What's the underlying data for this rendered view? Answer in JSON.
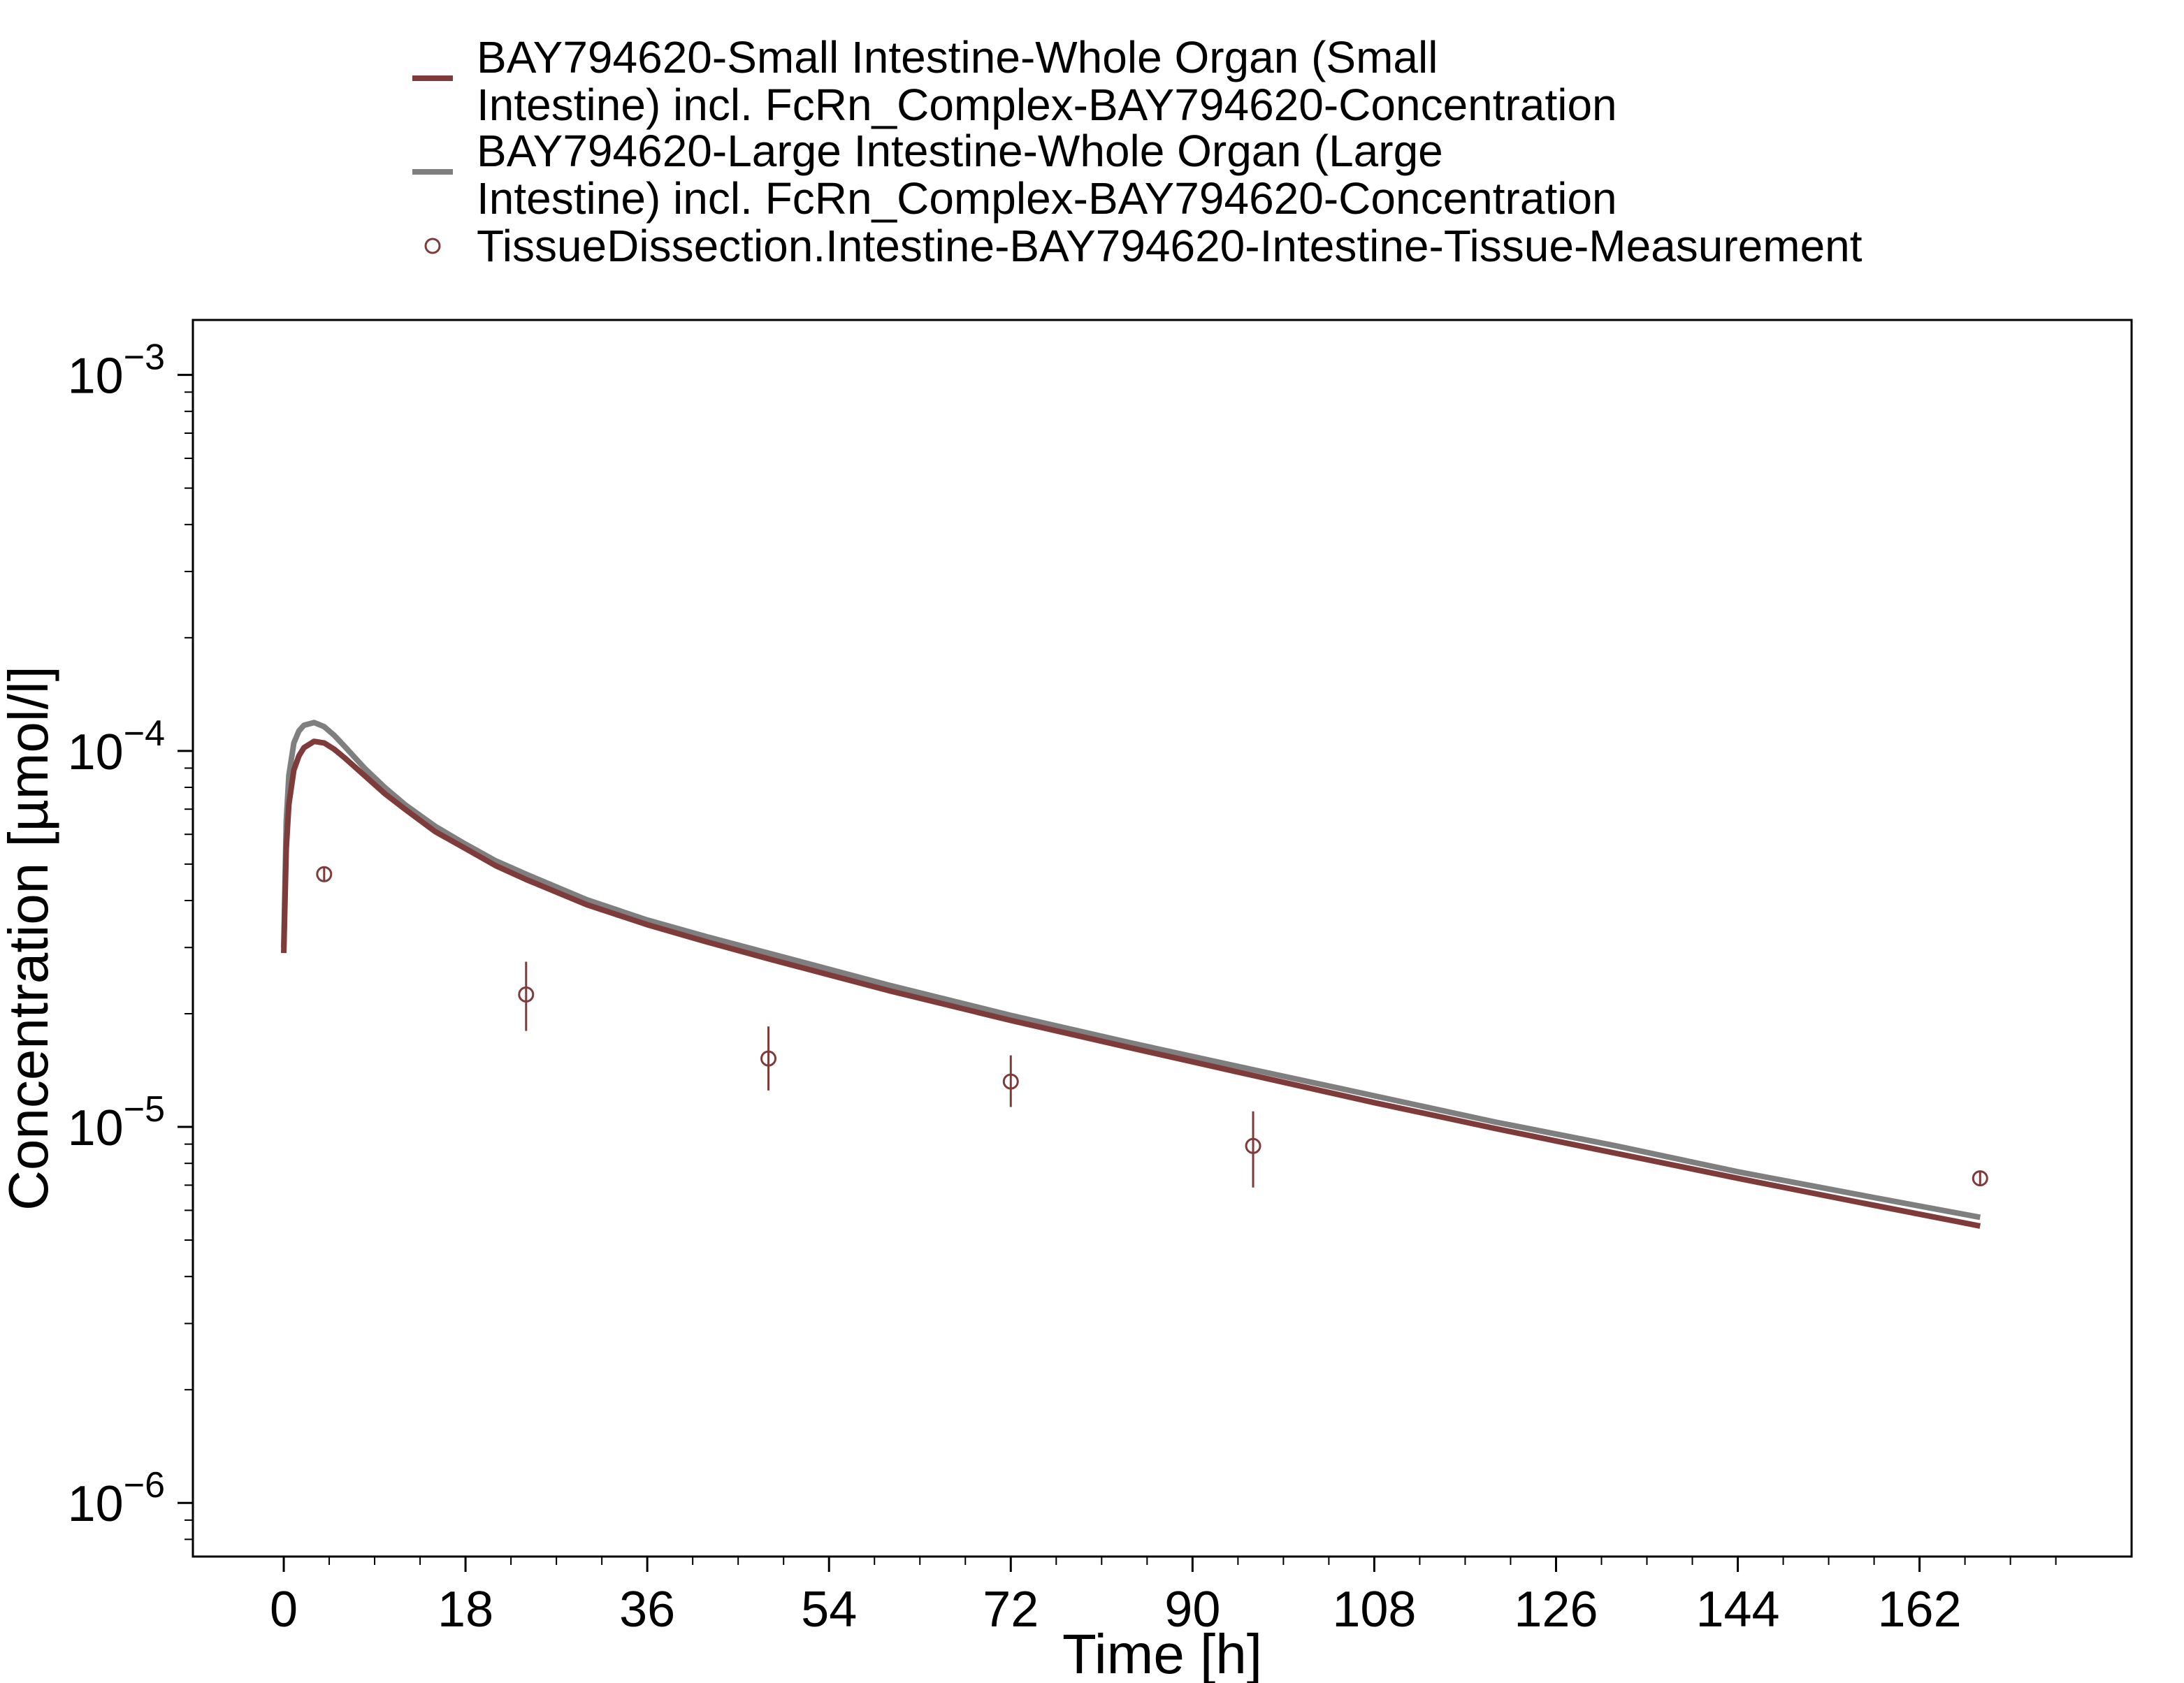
{
  "chart_data": {
    "type": "line",
    "xlabel": "Time [h]",
    "ylabel": "Concentration [µmol/l]",
    "xlim": [
      -9,
      183
    ],
    "ylim": [
      7.2e-07,
      0.0014
    ],
    "yscale": "log",
    "grid": false,
    "legend_position": "top",
    "x_ticks": [
      0,
      18,
      36,
      54,
      72,
      90,
      108,
      126,
      144,
      162
    ],
    "x_tick_labels": [
      "0",
      "18",
      "36",
      "54",
      "72",
      "90",
      "108",
      "126",
      "144",
      "162"
    ],
    "y_ticks": [
      {
        "value": 0.001,
        "base": "10",
        "exp": "−3"
      },
      {
        "value": 0.0001,
        "base": "10",
        "exp": "−4"
      },
      {
        "value": 1e-05,
        "base": "10",
        "exp": "−5"
      },
      {
        "value": 1e-06,
        "base": "10",
        "exp": "−6"
      }
    ],
    "series": [
      {
        "name": "BAY794620-Small Intestine-Whole Organ (Small Intestine) incl. FcRn_Complex-BAY794620-Concentration",
        "legend_lines": [
          "BAY794620-Small Intestine-Whole Organ (Small",
          "Intestine) incl. FcRn_Complex-BAY794620-Concentration"
        ],
        "kind": "line",
        "color": "#7f3a3a",
        "x": [
          0,
          0.25,
          0.5,
          1,
          1.5,
          2,
          3,
          4,
          5,
          6,
          8,
          10,
          12,
          15,
          18,
          21,
          24,
          30,
          36,
          42,
          48,
          60,
          72,
          84,
          96,
          108,
          120,
          132,
          144,
          156,
          168
        ],
        "y": [
          2.9e-05,
          5.5e-05,
          7.2e-05,
          8.9e-05,
          9.7e-05,
          0.000102,
          0.000106,
          0.000105,
          0.000101,
          9.6e-05,
          8.6e-05,
          7.7e-05,
          7e-05,
          6.1e-05,
          5.5e-05,
          4.95e-05,
          4.55e-05,
          3.9e-05,
          3.45e-05,
          3.1e-05,
          2.8e-05,
          2.3e-05,
          1.92e-05,
          1.62e-05,
          1.37e-05,
          1.16e-05,
          9.9e-06,
          8.5e-06,
          7.3e-06,
          6.3e-06,
          5.45e-06
        ]
      },
      {
        "name": "BAY794620-Large Intestine-Whole Organ (Large Intestine) incl. FcRn_Complex-BAY794620-Concentration",
        "legend_lines": [
          "BAY794620-Large Intestine-Whole Organ (Large",
          "Intestine) incl. FcRn_Complex-BAY794620-Concentration"
        ],
        "kind": "line",
        "color": "#7f7f7f",
        "x": [
          0,
          0.25,
          0.5,
          1,
          1.5,
          2,
          3,
          4,
          5,
          6,
          8,
          10,
          12,
          15,
          18,
          21,
          24,
          30,
          36,
          42,
          48,
          60,
          72,
          84,
          96,
          108,
          120,
          132,
          144,
          156,
          168
        ],
        "y": [
          3e-05,
          6.5e-05,
          8.6e-05,
          0.000105,
          0.000113,
          0.000117,
          0.000119,
          0.000116,
          0.00011,
          0.000103,
          9e-05,
          8e-05,
          7.2e-05,
          6.3e-05,
          5.65e-05,
          5.1e-05,
          4.7e-05,
          4.02e-05,
          3.55e-05,
          3.2e-05,
          2.9e-05,
          2.38e-05,
          1.98e-05,
          1.67e-05,
          1.42e-05,
          1.21e-05,
          1.03e-05,
          8.9e-06,
          7.6e-06,
          6.6e-06,
          5.75e-06
        ]
      },
      {
        "name": "TissueDissection.Intestine-BAY794620-Intestine-Tissue-Measurement",
        "legend_lines": [
          "TissueDissection.Intestine-BAY794620-Intestine-Tissue-Measurement"
        ],
        "kind": "scatter",
        "color": "#7f3a3a",
        "x": [
          4,
          24,
          48,
          72,
          96,
          168
        ],
        "y": [
          4.7e-05,
          2.25e-05,
          1.52e-05,
          1.32e-05,
          8.9e-06,
          7.3e-06
        ],
        "y_err_low": [
          4.5e-05,
          1.8e-05,
          1.25e-05,
          1.13e-05,
          6.9e-06,
          7e-06
        ],
        "y_err_high": [
          4.9e-05,
          2.75e-05,
          1.85e-05,
          1.55e-05,
          1.1e-05,
          7.6e-06
        ]
      }
    ]
  }
}
